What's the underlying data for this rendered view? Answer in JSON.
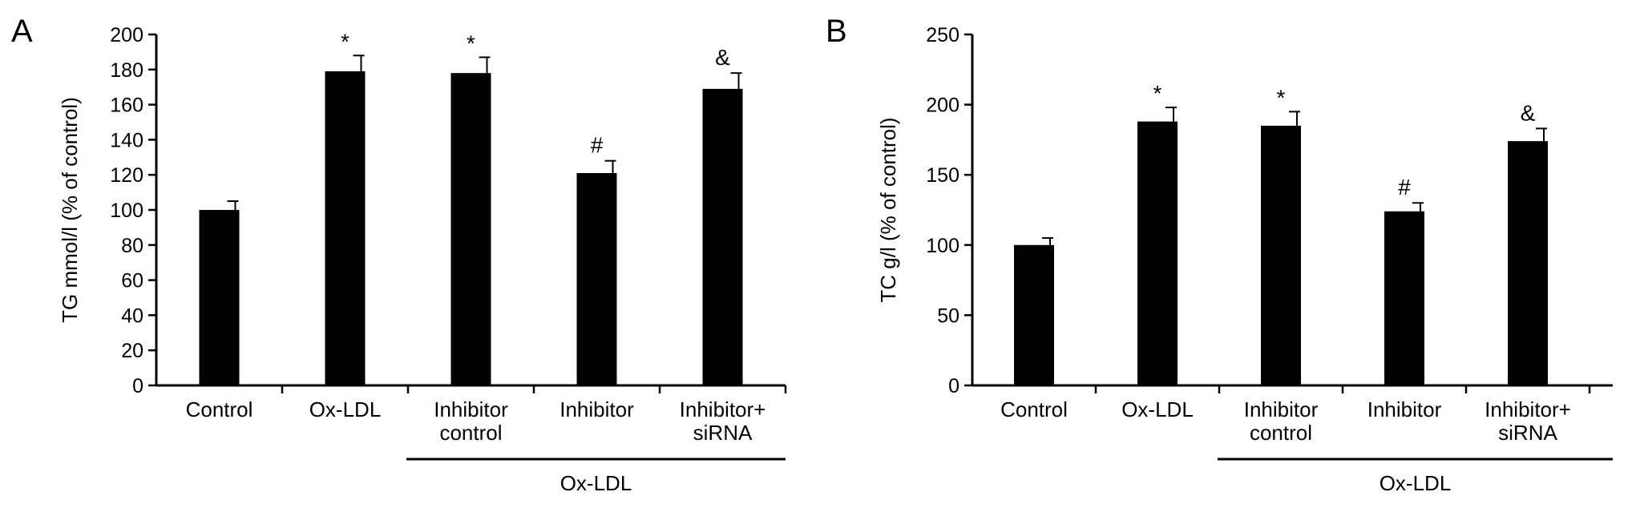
{
  "chart_data": [
    {
      "type": "bar",
      "panel_label": "A",
      "ylabel": "TG mmol/l (% of control)",
      "ylim": [
        0,
        200
      ],
      "yticks": [
        0,
        20,
        40,
        60,
        80,
        100,
        120,
        140,
        160,
        180,
        200
      ],
      "categories": [
        [
          "Control"
        ],
        [
          "Ox-LDL"
        ],
        [
          "Inhibitor",
          "control"
        ],
        [
          "Inhibitor"
        ],
        [
          "Inhibitor+",
          "siRNA"
        ]
      ],
      "values": [
        100,
        179,
        178,
        121,
        169
      ],
      "errors": [
        5,
        9,
        9,
        7,
        9
      ],
      "significance": [
        "",
        "*",
        "*",
        "#",
        "&"
      ],
      "group_label": "Ox-LDL",
      "group_start": 2,
      "group_end": 4,
      "bar_color": "#000000"
    },
    {
      "type": "bar",
      "panel_label": "B",
      "ylabel": "TC g/l (% of control)",
      "ylim": [
        0,
        250
      ],
      "yticks": [
        0,
        50,
        100,
        150,
        200,
        250
      ],
      "categories": [
        [
          "Control"
        ],
        [
          "Ox-LDL"
        ],
        [
          "Inhibitor",
          "control"
        ],
        [
          "Inhibitor"
        ],
        [
          "Inhibitor+",
          "siRNA"
        ]
      ],
      "values": [
        100,
        188,
        185,
        124,
        174
      ],
      "errors": [
        5,
        10,
        10,
        6,
        9
      ],
      "significance": [
        "",
        "*",
        "*",
        "#",
        "&"
      ],
      "group_label": "Ox-LDL",
      "group_start": 2,
      "group_end": 4,
      "bar_color": "#000000"
    }
  ]
}
